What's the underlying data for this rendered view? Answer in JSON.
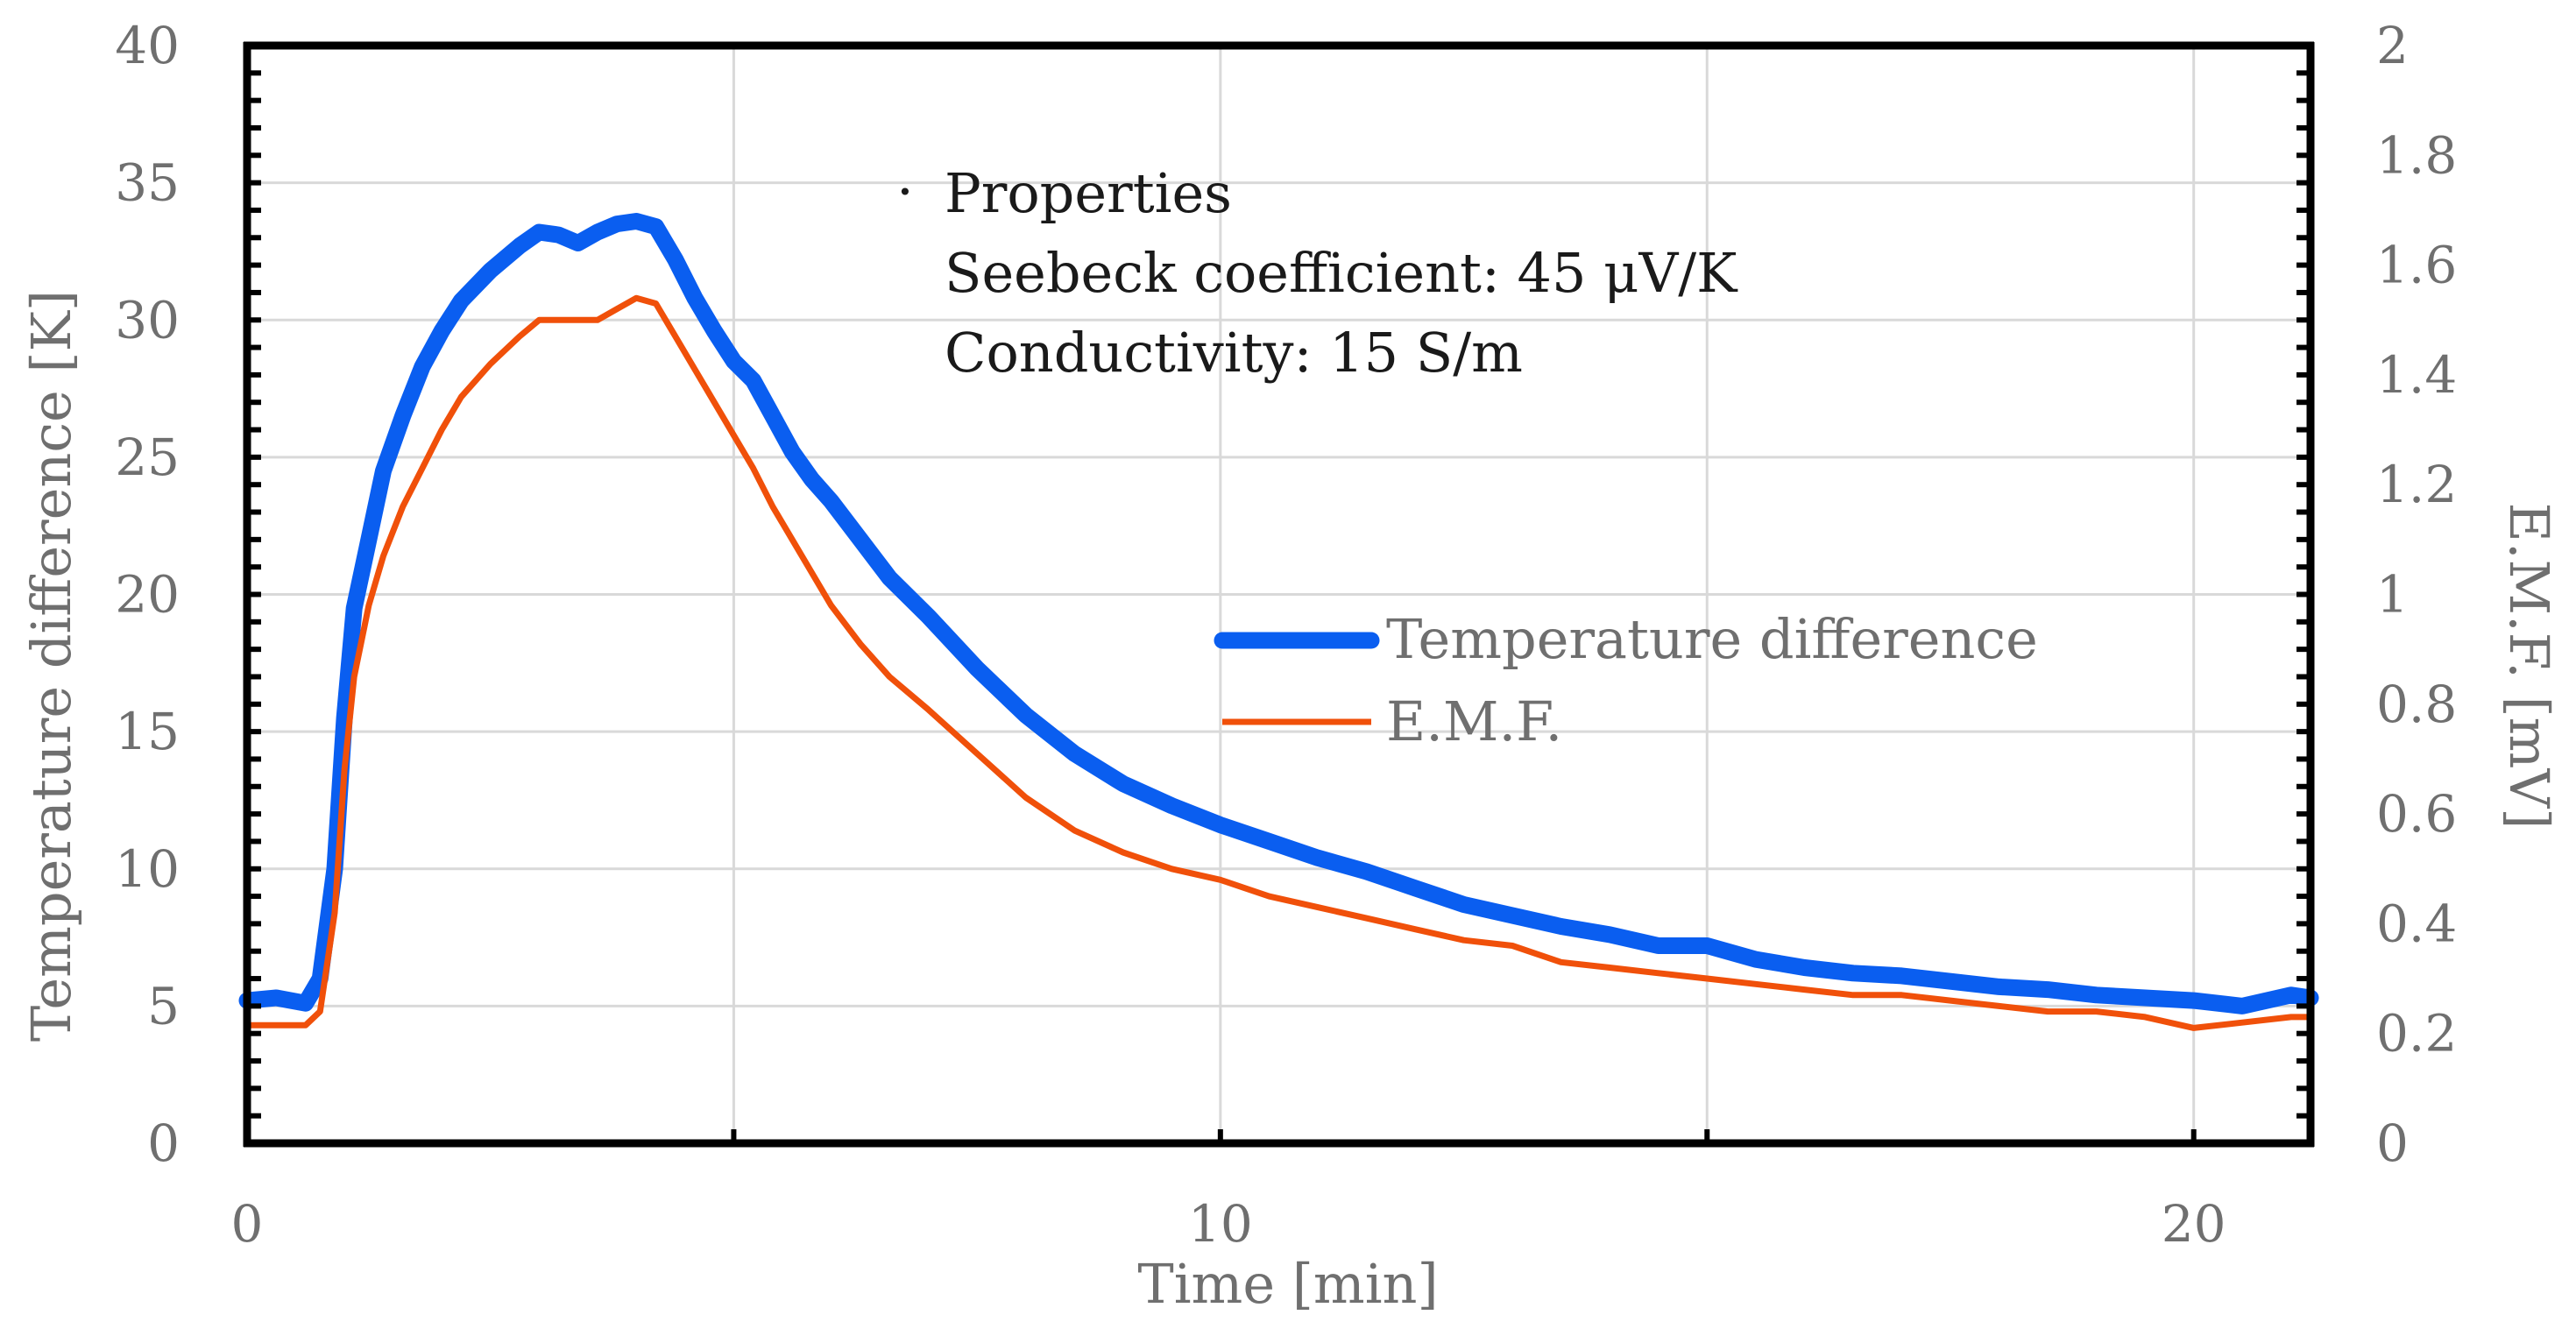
{
  "chart_data": {
    "type": "line",
    "title": "",
    "xlabel": "Time [min]",
    "ylabel": "Temperature difference [K]",
    "y2label": "E.M.F. [mV]",
    "xlim": [
      0,
      21.2
    ],
    "ylim": [
      0,
      40
    ],
    "y2lim": [
      0,
      2
    ],
    "x_ticks": [
      0,
      10,
      20
    ],
    "x_minor_ticks": [
      5,
      15
    ],
    "y_ticks": [
      0,
      5,
      10,
      15,
      20,
      25,
      30,
      35,
      40
    ],
    "y2_ticks": [
      0,
      0.2,
      0.4,
      0.6,
      0.8,
      1,
      1.2,
      1.4,
      1.6,
      1.8,
      2
    ],
    "x_tick_labels": [
      "0",
      "10",
      "20"
    ],
    "y_tick_labels": [
      "0",
      "5",
      "10",
      "15",
      "20",
      "25",
      "30",
      "35",
      "40"
    ],
    "y2_tick_labels": [
      "0",
      "0.2",
      "0.4",
      "0.6",
      "0.8",
      "1",
      "1.2",
      "1.4",
      "1.6",
      "1.8",
      "2"
    ],
    "grid": true,
    "legend_position": "center-right",
    "annotation": {
      "bullet": "·",
      "lines": [
        "Properties",
        "Seebeck coefficient: 45 μV/K",
        "Conductivity: 15 S/m"
      ]
    },
    "series": [
      {
        "name": "Temperature difference",
        "axis": "left",
        "color": "#0a5ef0",
        "x": [
          0,
          0.3,
          0.6,
          0.75,
          0.9,
          1.0,
          1.1,
          1.25,
          1.4,
          1.6,
          1.8,
          2.0,
          2.2,
          2.5,
          2.8,
          3.0,
          3.2,
          3.4,
          3.6,
          3.8,
          4.0,
          4.2,
          4.4,
          4.6,
          4.8,
          5.0,
          5.2,
          5.4,
          5.6,
          5.8,
          6.0,
          6.3,
          6.6,
          7.0,
          7.5,
          8.0,
          8.5,
          9.0,
          9.5,
          10.0,
          10.5,
          11.0,
          11.5,
          12.0,
          12.5,
          13.0,
          13.5,
          14.0,
          14.5,
          15.0,
          15.5,
          16.0,
          16.5,
          17.0,
          17.5,
          18.0,
          18.5,
          19.0,
          19.5,
          20.0,
          20.5,
          21.0,
          21.2
        ],
        "values": [
          5.2,
          5.3,
          5.1,
          6.0,
          10.0,
          15.5,
          19.5,
          22.0,
          24.5,
          26.5,
          28.3,
          29.6,
          30.7,
          31.8,
          32.7,
          33.2,
          33.1,
          32.8,
          33.2,
          33.5,
          33.6,
          33.4,
          32.2,
          30.8,
          29.6,
          28.5,
          27.8,
          26.5,
          25.2,
          24.2,
          23.4,
          22.0,
          20.6,
          19.2,
          17.3,
          15.6,
          14.2,
          13.1,
          12.3,
          11.6,
          11.0,
          10.4,
          9.9,
          9.3,
          8.7,
          8.3,
          7.9,
          7.6,
          7.2,
          7.2,
          6.7,
          6.4,
          6.2,
          6.1,
          5.9,
          5.7,
          5.6,
          5.4,
          5.3,
          5.2,
          5.0,
          5.4,
          5.3
        ]
      },
      {
        "name": "E.M.F.",
        "axis": "right",
        "color": "#f0500a",
        "x": [
          0,
          0.3,
          0.6,
          0.75,
          0.9,
          1.0,
          1.1,
          1.25,
          1.4,
          1.6,
          1.8,
          2.0,
          2.2,
          2.5,
          2.8,
          3.0,
          3.2,
          3.4,
          3.6,
          3.8,
          4.0,
          4.2,
          4.4,
          4.6,
          4.8,
          5.0,
          5.2,
          5.4,
          5.6,
          5.8,
          6.0,
          6.3,
          6.6,
          7.0,
          7.5,
          8.0,
          8.5,
          9.0,
          9.5,
          10.0,
          10.5,
          11.0,
          11.5,
          12.0,
          12.5,
          13.0,
          13.5,
          14.0,
          14.5,
          15.0,
          15.5,
          16.0,
          16.5,
          17.0,
          17.5,
          18.0,
          18.5,
          19.0,
          19.5,
          20.0,
          20.5,
          21.0,
          21.2
        ],
        "values": [
          0.215,
          0.215,
          0.215,
          0.24,
          0.42,
          0.68,
          0.85,
          0.98,
          1.07,
          1.16,
          1.23,
          1.3,
          1.36,
          1.42,
          1.47,
          1.5,
          1.5,
          1.5,
          1.5,
          1.52,
          1.54,
          1.53,
          1.47,
          1.41,
          1.35,
          1.29,
          1.23,
          1.16,
          1.1,
          1.04,
          0.98,
          0.91,
          0.85,
          0.79,
          0.71,
          0.63,
          0.57,
          0.53,
          0.5,
          0.48,
          0.45,
          0.43,
          0.41,
          0.39,
          0.37,
          0.36,
          0.33,
          0.32,
          0.31,
          0.3,
          0.29,
          0.28,
          0.27,
          0.27,
          0.26,
          0.25,
          0.24,
          0.24,
          0.23,
          0.21,
          0.22,
          0.23,
          0.23
        ]
      }
    ]
  }
}
